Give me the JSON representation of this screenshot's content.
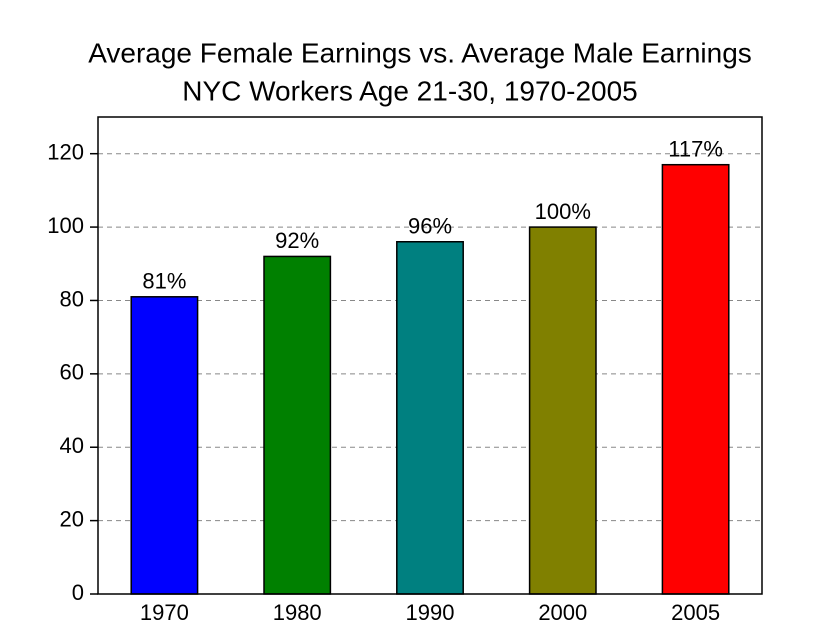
{
  "chart_data": {
    "type": "bar",
    "title": "Average Female Earnings vs. Average Male Earnings",
    "subtitle": "NYC Workers Age 21-30, 1970-2005",
    "categories": [
      "1970",
      "1980",
      "1990",
      "2000",
      "2005"
    ],
    "values": [
      81,
      92,
      96,
      100,
      117
    ],
    "value_labels": [
      "81%",
      "92%",
      "96%",
      "100%",
      "117%"
    ],
    "colors": [
      "#0000ff",
      "#008000",
      "#008080",
      "#808000",
      "#ff0000"
    ],
    "ylim": [
      0,
      130
    ],
    "yticks": [
      0,
      20,
      40,
      60,
      80,
      100,
      120
    ],
    "grid": true
  }
}
